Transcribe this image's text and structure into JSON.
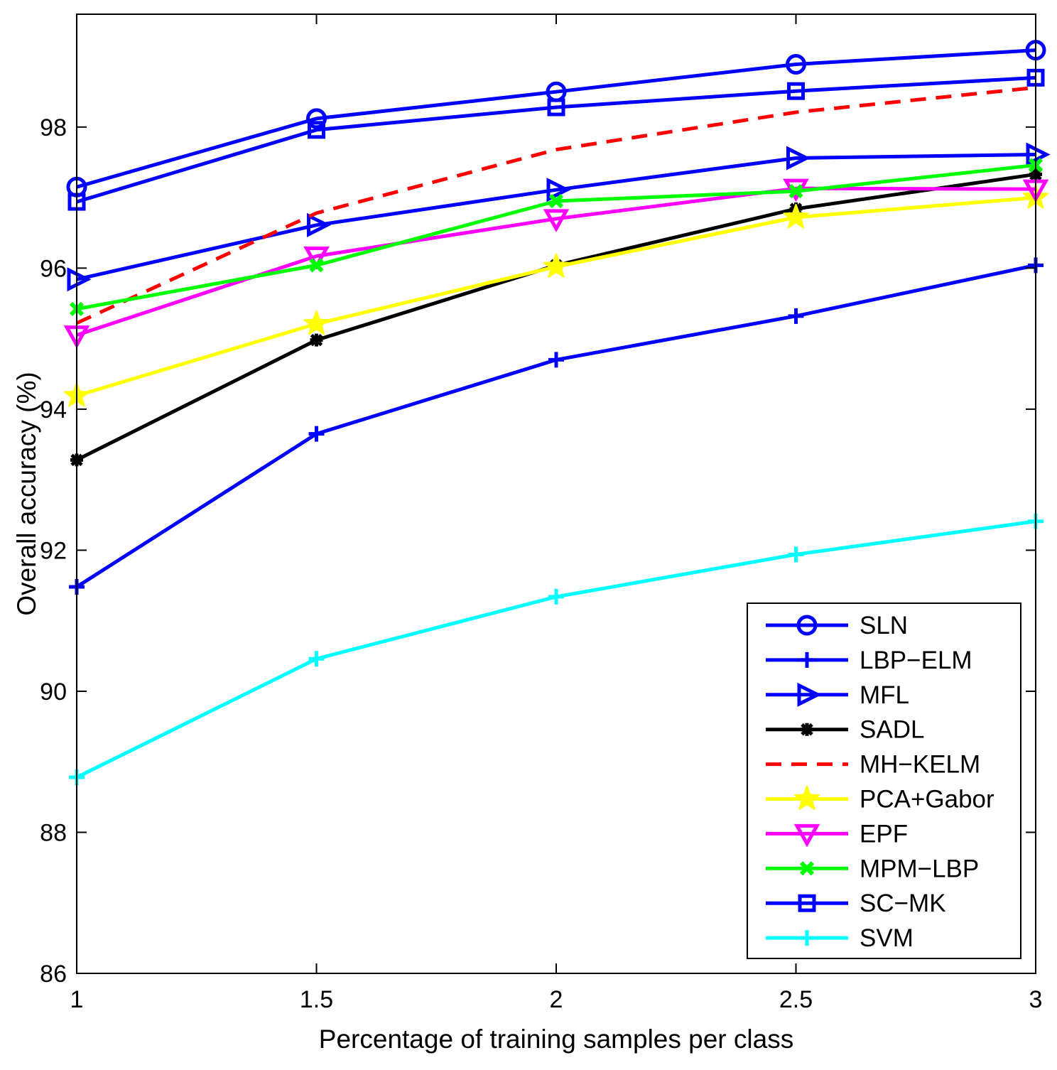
{
  "chart_data": {
    "type": "line",
    "title": "",
    "xlabel": "Percentage of training samples per class",
    "ylabel": "Overall accuracy (%)",
    "xlim": [
      1,
      3
    ],
    "ylim": [
      86,
      99.6
    ],
    "x_ticks": [
      1,
      1.5,
      2,
      2.5,
      3
    ],
    "x_tick_labels": [
      "1",
      "1.5",
      "2",
      "2.5",
      "3"
    ],
    "y_ticks": [
      86,
      88,
      90,
      92,
      94,
      96,
      98
    ],
    "y_tick_labels": [
      "86",
      "88",
      "90",
      "92",
      "94",
      "96",
      "98"
    ],
    "grid": false,
    "legend_position": "bottom-right",
    "x": [
      1,
      1.5,
      2,
      2.5,
      3
    ],
    "series": [
      {
        "name": "SLN",
        "values": [
          97.15,
          98.12,
          98.5,
          98.89,
          99.09
        ],
        "color": "#0000ff",
        "marker": "circle",
        "dash": "solid"
      },
      {
        "name": "LBP−ELM",
        "values": [
          91.48,
          93.65,
          94.7,
          95.32,
          96.04
        ],
        "color": "#0000ff",
        "marker": "plus",
        "dash": "solid"
      },
      {
        "name": "MFL",
        "values": [
          95.84,
          96.61,
          97.11,
          97.56,
          97.61
        ],
        "color": "#0000ff",
        "marker": "triangle-right",
        "dash": "solid"
      },
      {
        "name": "SADL",
        "values": [
          93.28,
          94.98,
          96.04,
          96.84,
          97.33
        ],
        "color": "#000000",
        "marker": "asterisk",
        "dash": "solid"
      },
      {
        "name": "MH−KELM",
        "values": [
          95.22,
          96.78,
          97.68,
          98.21,
          98.56
        ],
        "color": "#ff0000",
        "marker": "none",
        "dash": "dashed"
      },
      {
        "name": "PCA+Gabor",
        "values": [
          94.19,
          95.21,
          96.02,
          96.72,
          97.0
        ],
        "color": "#ffff00",
        "marker": "star",
        "dash": "solid"
      },
      {
        "name": "EPF",
        "values": [
          95.05,
          96.17,
          96.7,
          97.13,
          97.12
        ],
        "color": "#ff00ff",
        "marker": "triangle-down",
        "dash": "solid"
      },
      {
        "name": "MPM−LBP",
        "values": [
          95.42,
          96.04,
          96.95,
          97.09,
          97.46
        ],
        "color": "#00ff00",
        "marker": "x",
        "dash": "solid"
      },
      {
        "name": "SC−MK",
        "values": [
          96.94,
          97.96,
          98.28,
          98.51,
          98.7
        ],
        "color": "#0000ff",
        "marker": "square",
        "dash": "solid"
      },
      {
        "name": "SVM",
        "values": [
          88.78,
          90.46,
          91.34,
          91.94,
          92.41
        ],
        "color": "#00ffff",
        "marker": "plus",
        "dash": "solid"
      }
    ]
  }
}
